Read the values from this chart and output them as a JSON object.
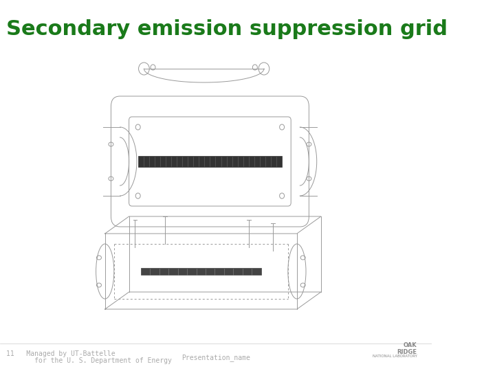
{
  "title": "Secondary emission suppression grid",
  "title_color": "#1a7a1a",
  "title_fontsize": 22,
  "title_weight": "bold",
  "bg_color": "#ffffff",
  "footer_left_line1": "11   Managed by UT-Battelle",
  "footer_left_line2": "       for the U. S. Department of Energy",
  "footer_center": "Presentation_name",
  "footer_color": "#aaaaaa",
  "footer_fontsize": 7,
  "line_color": "#999999",
  "dark_color": "#333333"
}
